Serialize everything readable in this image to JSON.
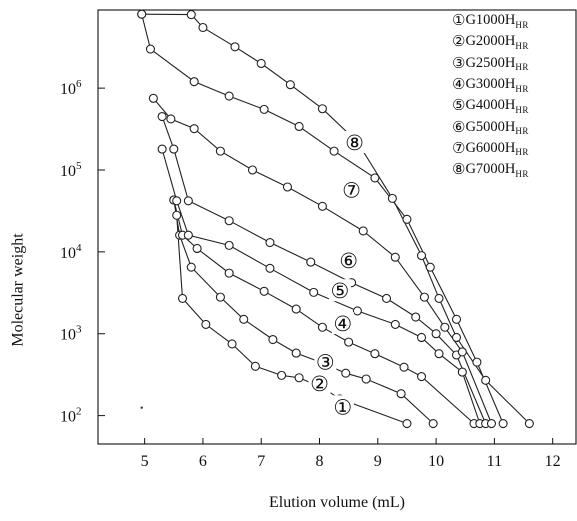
{
  "chart_data": {
    "type": "line",
    "title": "",
    "xlabel": "Elution volume (mL)",
    "ylabel": "Molecular weight",
    "x_ticks": [
      "5",
      "6",
      "7",
      "8",
      "9",
      "10",
      "11",
      "12"
    ],
    "y_ticks": [
      {
        "value": 100,
        "base": "10",
        "exp": "2"
      },
      {
        "value": 1000,
        "base": "10",
        "exp": "3"
      },
      {
        "value": 10000,
        "base": "10",
        "exp": "4"
      },
      {
        "value": 100000,
        "base": "10",
        "exp": "5"
      },
      {
        "value": 1000000,
        "base": "10",
        "exp": "6"
      }
    ],
    "xlim": [
      4.2,
      12.4
    ],
    "ylim": [
      45,
      9000000
    ],
    "yscale": "log",
    "grid": false,
    "legend_position": "top-right",
    "series": [
      {
        "name": "G1000H",
        "marker": "①",
        "name_suffix": "HR",
        "x": [
          5.55,
          5.65,
          6.05,
          6.5,
          6.9,
          7.35,
          7.65,
          8.05,
          8.35,
          9.5
        ],
        "y": [
          28000,
          2700,
          1300,
          750,
          400,
          310,
          290,
          220,
          160,
          80
        ]
      },
      {
        "name": "G2000H",
        "marker": "②",
        "name_suffix": "HR",
        "x": [
          5.5,
          5.6,
          5.8,
          6.3,
          6.7,
          7.2,
          7.6,
          8.05,
          8.45,
          8.8,
          9.4,
          9.95
        ],
        "y": [
          43000,
          16000,
          6500,
          2800,
          1500,
          850,
          580,
          440,
          330,
          280,
          185,
          80
        ]
      },
      {
        "name": "G2500H",
        "marker": "③",
        "name_suffix": "HR",
        "x": [
          5.5,
          5.65,
          5.9,
          6.45,
          7.05,
          7.6,
          8.05,
          8.5,
          8.95,
          9.45,
          9.75,
          10.65
        ],
        "y": [
          43000,
          16000,
          11000,
          5500,
          3300,
          2000,
          1200,
          790,
          570,
          390,
          300,
          80
        ]
      },
      {
        "name": "G3000H",
        "marker": "④",
        "name_suffix": "HR",
        "x": [
          5.3,
          5.55,
          5.75,
          6.45,
          7.15,
          7.9,
          8.65,
          9.3,
          9.75,
          10.05,
          10.45,
          10.75
        ],
        "y": [
          180000,
          42000,
          16000,
          12000,
          6300,
          3200,
          1900,
          1300,
          900,
          570,
          340,
          80
        ]
      },
      {
        "name": "G4000H",
        "marker": "⑤",
        "name_suffix": "HR",
        "x": [
          5.3,
          5.5,
          5.75,
          6.45,
          7.15,
          7.85,
          8.55,
          9.15,
          9.65,
          10.0,
          10.35,
          10.85
        ],
        "y": [
          450000,
          180000,
          42000,
          24000,
          13000,
          7500,
          4200,
          2700,
          1600,
          1000,
          550,
          80
        ]
      },
      {
        "name": "G5000H",
        "marker": "⑥",
        "name_suffix": "HR",
        "x": [
          5.15,
          5.45,
          5.85,
          6.3,
          6.85,
          7.45,
          8.05,
          8.75,
          9.3,
          9.8,
          10.15,
          10.45,
          10.95
        ],
        "y": [
          750000,
          420000,
          320000,
          170000,
          100000,
          62000,
          36000,
          18000,
          8600,
          2800,
          1200,
          600,
          80
        ]
      },
      {
        "name": "G6000H",
        "marker": "⑦",
        "name_suffix": "HR",
        "x": [
          4.95,
          5.1,
          5.85,
          6.45,
          7.05,
          7.65,
          8.25,
          8.95,
          9.5,
          9.9,
          10.35,
          10.7,
          11.15
        ],
        "y": [
          8000000,
          3000000,
          1200000,
          800000,
          550000,
          340000,
          170000,
          80000,
          25000,
          6500,
          1500,
          450,
          80
        ]
      },
      {
        "name": "G7000H",
        "marker": "⑧",
        "name_suffix": "HR",
        "x": [
          4.95,
          5.8,
          6.0,
          6.55,
          7.0,
          7.5,
          8.05,
          8.65,
          9.25,
          9.75,
          10.05,
          10.35,
          10.85,
          11.6
        ],
        "y": [
          8000000,
          7900000,
          5500000,
          3200000,
          2000000,
          1100000,
          560000,
          220000,
          45000,
          9000,
          2700,
          900,
          270,
          80
        ]
      }
    ],
    "series_label_positions": [
      {
        "series": "G1000H",
        "x": 8.4,
        "y": 130
      },
      {
        "series": "G2000H",
        "x": 8.0,
        "y": 250
      },
      {
        "series": "G2500H",
        "x": 8.1,
        "y": 460
      },
      {
        "series": "G3000H",
        "x": 8.4,
        "y": 1350
      },
      {
        "series": "G4000H",
        "x": 8.35,
        "y": 3400
      },
      {
        "series": "G5000H",
        "x": 8.5,
        "y": 8000
      },
      {
        "series": "G6000H",
        "x": 8.55,
        "y": 58000
      },
      {
        "series": "G7000H",
        "x": 8.6,
        "y": 220000
      }
    ],
    "stray_dot": {
      "x": 4.95,
      "y": 125
    }
  }
}
